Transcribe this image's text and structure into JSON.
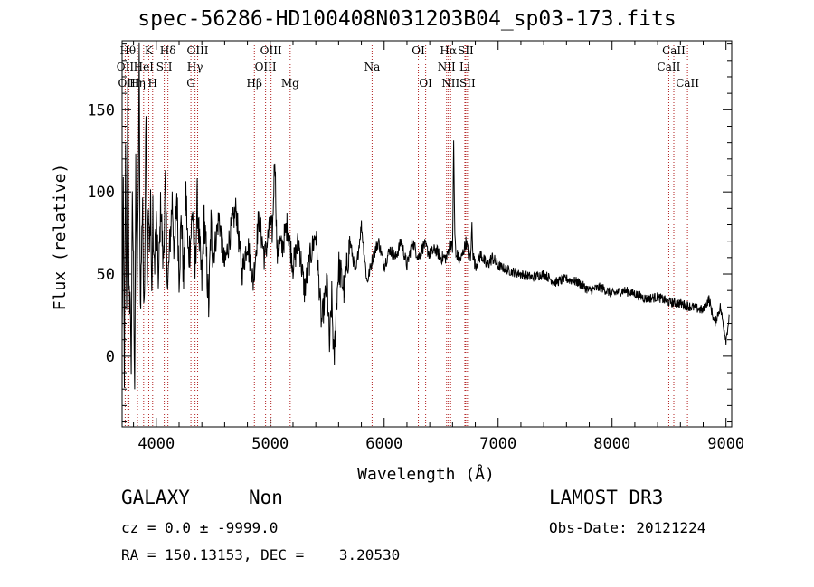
{
  "chart_data": {
    "type": "line",
    "title": "spec-56286-HD100408N031203B04_sp03-173.fits",
    "xlabel": "Wavelength (Å)",
    "ylabel": "Flux (relative)",
    "xlim": [
      3700,
      9050
    ],
    "ylim": [
      -43,
      192
    ],
    "x_ticks": [
      4000,
      5000,
      6000,
      7000,
      8000,
      9000
    ],
    "y_ticks": [
      0,
      50,
      100,
      150
    ],
    "grid": false,
    "series": [
      {
        "x": [
          3700,
          3710,
          3720,
          3730,
          3740,
          3750,
          3760,
          3770,
          3780,
          3790,
          3800,
          3810,
          3820,
          3830,
          3840,
          3850,
          3860,
          3870,
          3880,
          3890,
          3900,
          3910,
          3920,
          3930,
          3940,
          3950,
          3960,
          3970,
          3980,
          3990,
          4000,
          4020,
          4040,
          4060,
          4080,
          4100,
          4120,
          4140,
          4160,
          4180,
          4200,
          4220,
          4240,
          4260,
          4280,
          4300,
          4320,
          4340,
          4360,
          4380,
          4400,
          4420,
          4440,
          4460,
          4480,
          4500,
          4550,
          4600,
          4650,
          4700,
          4750,
          4800,
          4850,
          4900,
          4950,
          5000,
          5020,
          5040,
          5060,
          5080,
          5100,
          5150,
          5200,
          5250,
          5300,
          5350,
          5400,
          5450,
          5500,
          5520,
          5540,
          5560,
          5580,
          5600,
          5650,
          5700,
          5750,
          5800,
          5850,
          5900,
          5950,
          6000,
          6050,
          6100,
          6150,
          6200,
          6250,
          6300,
          6350,
          6400,
          6450,
          6500,
          6550,
          6580,
          6600,
          6610,
          6620,
          6630,
          6640,
          6660,
          6680,
          6700,
          6720,
          6740,
          6760,
          6770,
          6780,
          6800,
          6850,
          6900,
          6950,
          7000,
          7100,
          7200,
          7300,
          7400,
          7500,
          7600,
          7700,
          7800,
          7900,
          8000,
          8100,
          8200,
          8300,
          8400,
          8500,
          8600,
          8700,
          8800,
          8850,
          8900,
          8950,
          9000,
          9030
        ],
        "y": [
          10,
          95,
          -10,
          120,
          20,
          175,
          30,
          40,
          -5,
          90,
          55,
          -15,
          110,
          40,
          80,
          185,
          30,
          60,
          100,
          20,
          70,
          160,
          45,
          90,
          60,
          100,
          35,
          85,
          50,
          70,
          80,
          45,
          95,
          55,
          105,
          40,
          70,
          95,
          60,
          100,
          50,
          85,
          45,
          100,
          60,
          70,
          90,
          50,
          95,
          65,
          45,
          85,
          60,
          30,
          80,
          60,
          85,
          55,
          75,
          90,
          50,
          70,
          45,
          85,
          60,
          80,
          75,
          125,
          60,
          70,
          65,
          80,
          55,
          70,
          40,
          60,
          75,
          20,
          45,
          5,
          35,
          -5,
          30,
          55,
          40,
          70,
          50,
          80,
          45,
          60,
          70,
          55,
          65,
          60,
          70,
          55,
          70,
          60,
          68,
          62,
          65,
          60,
          60,
          70,
          65,
          130,
          75,
          60,
          62,
          58,
          60,
          65,
          70,
          62,
          60,
          80,
          62,
          55,
          62,
          55,
          60,
          55,
          52,
          50,
          48,
          50,
          45,
          47,
          45,
          40,
          42,
          38,
          40,
          38,
          35,
          36,
          33,
          32,
          30,
          28,
          35,
          20,
          30,
          10,
          25
        ]
      }
    ],
    "line_markers": [
      {
        "label": "OII",
        "x": 3727,
        "row": 1
      },
      {
        "label": "Hθ",
        "x": 3750,
        "row": 0
      },
      {
        "label": "OIII",
        "x": 3760,
        "row": 2
      },
      {
        "label": "Hη",
        "x": 3835,
        "row": 2
      },
      {
        "label": "HeI",
        "x": 3889,
        "row": 1
      },
      {
        "label": "K",
        "x": 3934,
        "row": 0
      },
      {
        "label": "H",
        "x": 3968,
        "row": 2
      },
      {
        "label": "SII",
        "x": 4070,
        "row": 1
      },
      {
        "label": "Hδ",
        "x": 4102,
        "row": 0
      },
      {
        "label": "G",
        "x": 4304,
        "row": 2
      },
      {
        "label": "Hγ",
        "x": 4340,
        "row": 1
      },
      {
        "label": "OIII",
        "x": 4363,
        "row": 0
      },
      {
        "label": "Hβ",
        "x": 4861,
        "row": 2
      },
      {
        "label": "OIII",
        "x": 4959,
        "row": 1
      },
      {
        "label": "OIII",
        "x": 5007,
        "row": 0
      },
      {
        "label": "Mg",
        "x": 5175,
        "row": 2
      },
      {
        "label": "Na",
        "x": 5894,
        "row": 1
      },
      {
        "label": "OI",
        "x": 6300,
        "row": 0
      },
      {
        "label": "OI",
        "x": 6364,
        "row": 2
      },
      {
        "label": "NII",
        "x": 6548,
        "row": 1
      },
      {
        "label": "Hα",
        "x": 6563,
        "row": 0
      },
      {
        "label": "NII",
        "x": 6583,
        "row": 2
      },
      {
        "label": "SII",
        "x": 6716,
        "row": 0
      },
      {
        "label": "Li",
        "x": 6708,
        "row": 1
      },
      {
        "label": "SII",
        "x": 6731,
        "row": 2
      },
      {
        "label": "CaII",
        "x": 8498,
        "row": 1
      },
      {
        "label": "CaII",
        "x": 8542,
        "row": 0
      },
      {
        "label": "CaII",
        "x": 8662,
        "row": 2
      }
    ]
  },
  "info": {
    "class": "GALAXY",
    "subclass": "Non",
    "survey": "LAMOST DR3",
    "cz": "cz = 0.0 ± -9999.0",
    "obs_date": "Obs-Date: 20121224",
    "radec": "RA = 150.13153, DEC =    3.20530"
  }
}
